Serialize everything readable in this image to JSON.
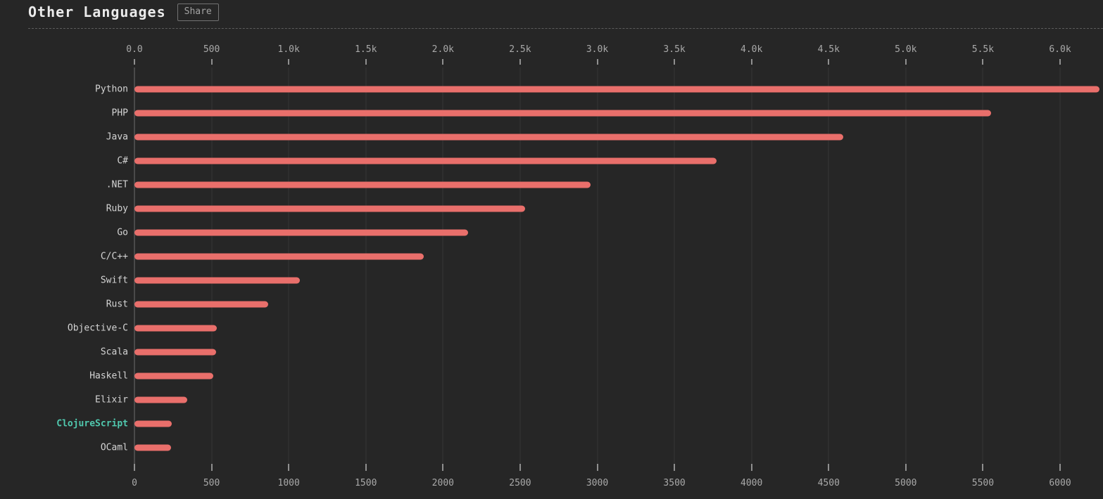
{
  "header": {
    "title": "Other Languages",
    "share_label": "Share"
  },
  "colors": {
    "background": "#262626",
    "bar": "#e96f6b",
    "highlight_label": "#50c8ae",
    "title": "#ebebeb",
    "category_label": "#d4d4d4",
    "axis_label": "#a9a9a9",
    "gridline": "#363636",
    "separator": "#5c5c5c"
  },
  "chart_data": {
    "type": "bar",
    "orientation": "horizontal",
    "title": "Other Languages",
    "xlabel": "",
    "ylabel": "",
    "xlim": [
      0,
      6000
    ],
    "grid": true,
    "categories": [
      "Python",
      "PHP",
      "Java",
      "C#",
      ".NET",
      "Ruby",
      "Go",
      "C/C++",
      "Swift",
      "Rust",
      "Objective-C",
      "Scala",
      "Haskell",
      "Elixir",
      "ClojureScript",
      "OCaml"
    ],
    "values": [
      6256,
      5553,
      4594,
      3773,
      2957,
      2532,
      2163,
      1875,
      1072,
      867,
      534,
      530,
      512,
      342,
      242,
      237
    ],
    "highlighted_category": "ClojureScript",
    "top_axis_tick_labels": [
      "0.0",
      "500",
      "1.0k",
      "1.5k",
      "2.0k",
      "2.5k",
      "3.0k",
      "3.5k",
      "4.0k",
      "4.5k",
      "5.0k",
      "5.5k",
      "6.0k"
    ],
    "bottom_axis_tick_labels": [
      "0",
      "500",
      "1000",
      "1500",
      "2000",
      "2500",
      "3000",
      "3500",
      "4000",
      "4500",
      "5000",
      "5500",
      "6000"
    ],
    "tick_step": 500
  }
}
